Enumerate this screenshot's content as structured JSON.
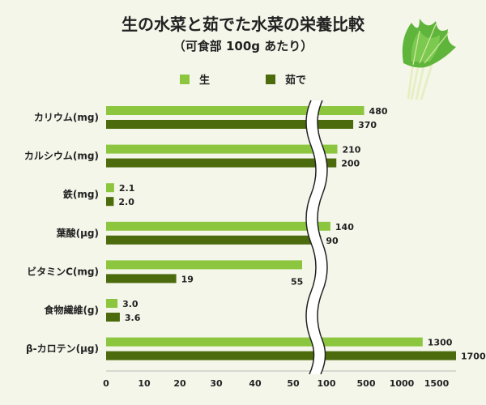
{
  "chart_data": {
    "type": "bar",
    "orientation": "horizontal",
    "title": "生の水菜と茹でた水菜の栄養比較",
    "subtitle": "（可食部 100g あたり）",
    "categories": [
      "カリウム(mg)",
      "カルシウム(mg)",
      "鉄(mg)",
      "葉酸(μg)",
      "ビタミンC(mg)",
      "食物繊維(g)",
      "β-カロテン(μg)"
    ],
    "series": [
      {
        "name": "生",
        "color": "#8cc63f",
        "values": [
          480,
          210,
          2.1,
          140,
          55,
          3.0,
          1300
        ],
        "labels": [
          "480",
          "210",
          "2.1",
          "140",
          "55",
          "3.0",
          "1300"
        ]
      },
      {
        "name": "茹で",
        "color": "#4b6b0c",
        "values": [
          370,
          200,
          2.0,
          90,
          19,
          3.6,
          1700
        ],
        "labels": [
          "370",
          "200",
          "2.0",
          "90",
          "19",
          "3.6",
          "1700"
        ]
      }
    ],
    "x_ticks": [
      "0",
      "10",
      "20",
      "30",
      "40",
      "50",
      "100",
      "500",
      "1000",
      "1500"
    ],
    "x_tick_values": [
      0,
      10,
      20,
      30,
      40,
      50,
      100,
      500,
      1000,
      1500
    ],
    "axis_break": "between 50 and 100",
    "xlim": [
      0,
      1700
    ],
    "legend": "top-center",
    "grid": false
  }
}
